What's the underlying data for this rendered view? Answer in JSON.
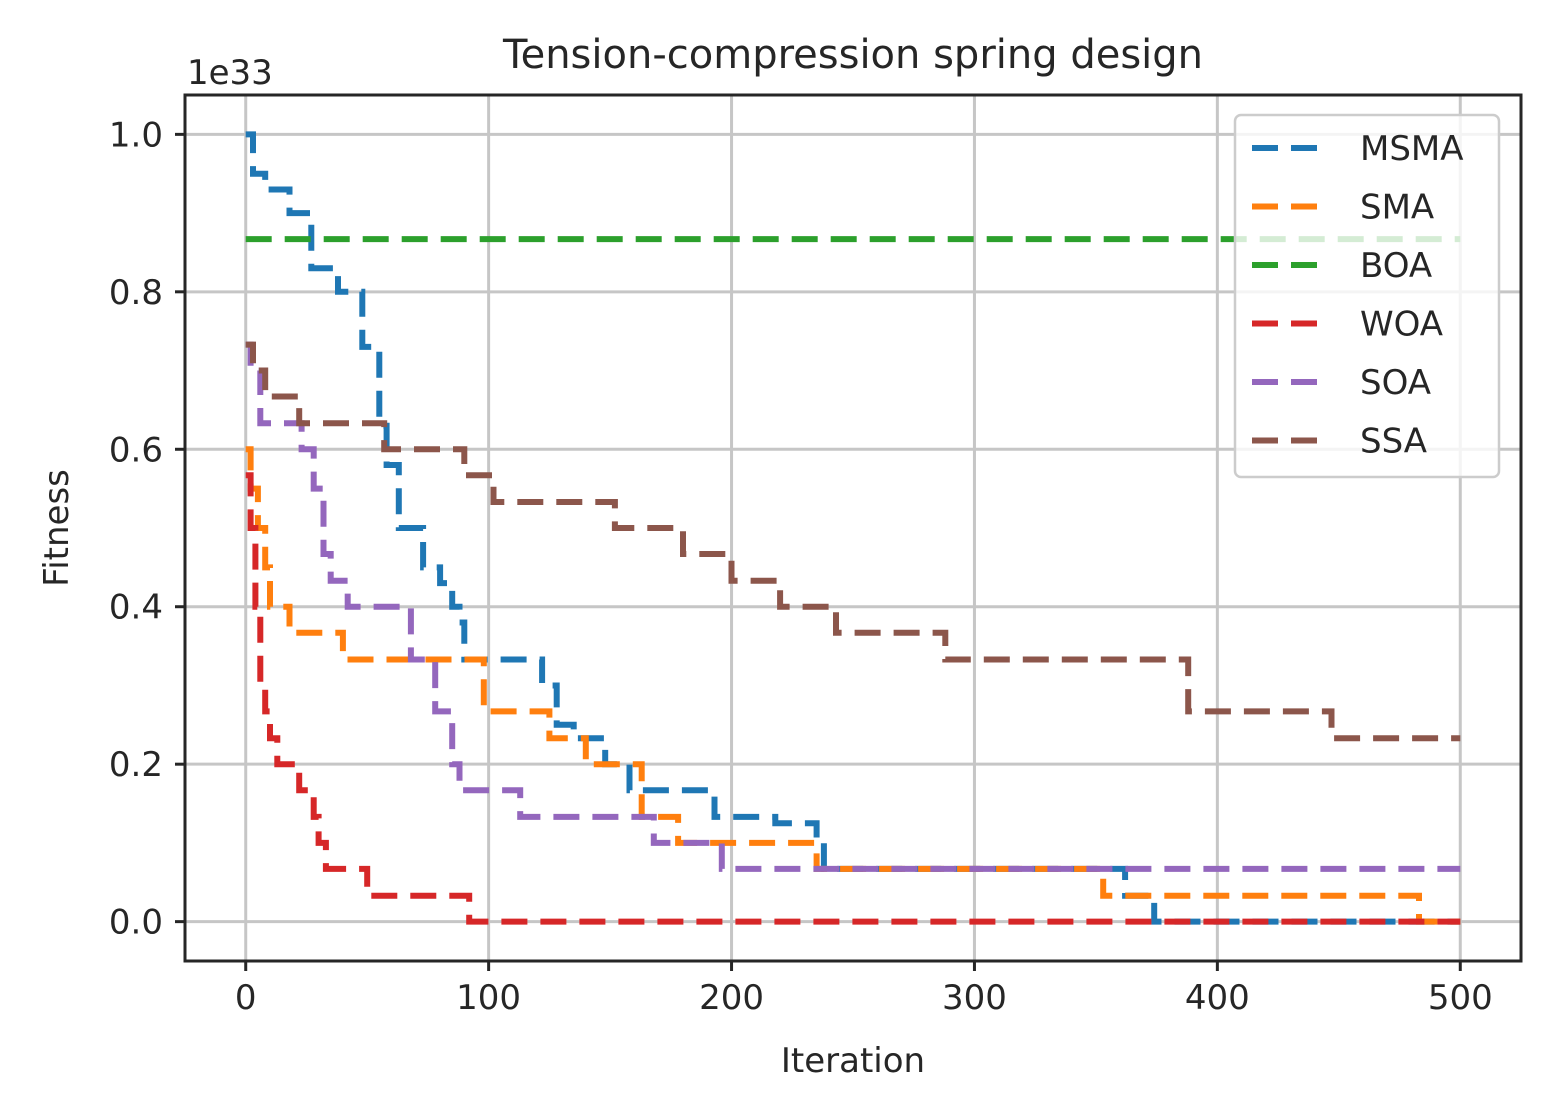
{
  "chart_data": {
    "type": "line",
    "title": "Tension-compression spring design",
    "xlabel": "Iteration",
    "ylabel": "Fitness",
    "y_scale_note": "1e33",
    "xlim": [
      -25,
      525
    ],
    "ylim": [
      -0.05,
      1.05
    ],
    "x_ticks": [
      0,
      100,
      200,
      300,
      400,
      500
    ],
    "x_tick_labels": [
      "0",
      "100",
      "200",
      "300",
      "400",
      "500"
    ],
    "y_ticks": [
      0.0,
      0.2,
      0.4,
      0.6,
      0.8,
      1.0
    ],
    "y_tick_labels": [
      "0.0",
      "0.2",
      "0.4",
      "0.6",
      "0.8",
      "1.0"
    ],
    "grid": true,
    "legend_position": "top-right",
    "line_style": "dashed-step",
    "series": [
      {
        "name": "MSMA",
        "color": "#1f77b4",
        "x": [
          0,
          3,
          8,
          18,
          24,
          27,
          30,
          38,
          45,
          48,
          55,
          58,
          63,
          70,
          73,
          80,
          85,
          88,
          90,
          120,
          122,
          128,
          135,
          145,
          148,
          152,
          158,
          190,
          193,
          218,
          235,
          238,
          358,
          362,
          372,
          374,
          500
        ],
        "y": [
          1.0,
          0.95,
          0.93,
          0.9,
          0.9,
          0.83,
          0.83,
          0.8,
          0.8,
          0.73,
          0.63,
          0.58,
          0.5,
          0.5,
          0.45,
          0.43,
          0.4,
          0.38,
          0.333,
          0.333,
          0.3,
          0.25,
          0.233,
          0.233,
          0.2,
          0.2,
          0.167,
          0.167,
          0.133,
          0.125,
          0.1,
          0.067,
          0.067,
          0.033,
          0.033,
          0.0,
          0.0
        ]
      },
      {
        "name": "SMA",
        "color": "#ff7f0e",
        "x": [
          0,
          2,
          5,
          8,
          10,
          15,
          18,
          38,
          40,
          95,
          98,
          120,
          125,
          133,
          140,
          160,
          163,
          175,
          178,
          190,
          232,
          235,
          350,
          353,
          480,
          483,
          500
        ],
        "y": [
          0.6,
          0.55,
          0.5,
          0.45,
          0.4,
          0.4,
          0.367,
          0.367,
          0.333,
          0.333,
          0.267,
          0.267,
          0.233,
          0.233,
          0.2,
          0.2,
          0.133,
          0.133,
          0.1,
          0.1,
          0.1,
          0.067,
          0.067,
          0.033,
          0.033,
          0.0,
          0.0
        ]
      },
      {
        "name": "BOA",
        "color": "#2ca02c",
        "x": [
          0,
          500
        ],
        "y": [
          0.867,
          0.867
        ]
      },
      {
        "name": "WOA",
        "color": "#d62728",
        "x": [
          0,
          2,
          4,
          6,
          8,
          10,
          13,
          20,
          22,
          28,
          30,
          33,
          35,
          50,
          52,
          90,
          92,
          500
        ],
        "y": [
          0.567,
          0.5,
          0.4,
          0.3,
          0.267,
          0.233,
          0.2,
          0.2,
          0.167,
          0.133,
          0.1,
          0.067,
          0.067,
          0.033,
          0.033,
          0.033,
          0.0,
          0.0
        ]
      },
      {
        "name": "SOA",
        "color": "#9467bd",
        "x": [
          0,
          2,
          6,
          20,
          23,
          28,
          32,
          35,
          38,
          42,
          45,
          65,
          68,
          75,
          78,
          85,
          88,
          110,
          113,
          165,
          168,
          193,
          196,
          500
        ],
        "y": [
          0.733,
          0.7,
          0.633,
          0.633,
          0.6,
          0.55,
          0.467,
          0.433,
          0.433,
          0.4,
          0.4,
          0.4,
          0.333,
          0.333,
          0.267,
          0.2,
          0.167,
          0.167,
          0.133,
          0.133,
          0.1,
          0.1,
          0.067,
          0.067
        ]
      },
      {
        "name": "SSA",
        "color": "#8c564b",
        "x": [
          0,
          3,
          8,
          20,
          22,
          55,
          57,
          88,
          90,
          100,
          102,
          150,
          152,
          178,
          180,
          198,
          200,
          218,
          220,
          240,
          243,
          286,
          288,
          385,
          388,
          445,
          447,
          500
        ],
        "y": [
          0.733,
          0.7,
          0.667,
          0.667,
          0.633,
          0.633,
          0.6,
          0.6,
          0.567,
          0.567,
          0.533,
          0.533,
          0.5,
          0.5,
          0.467,
          0.467,
          0.433,
          0.433,
          0.4,
          0.4,
          0.367,
          0.367,
          0.333,
          0.333,
          0.267,
          0.267,
          0.233,
          0.233
        ]
      }
    ]
  }
}
